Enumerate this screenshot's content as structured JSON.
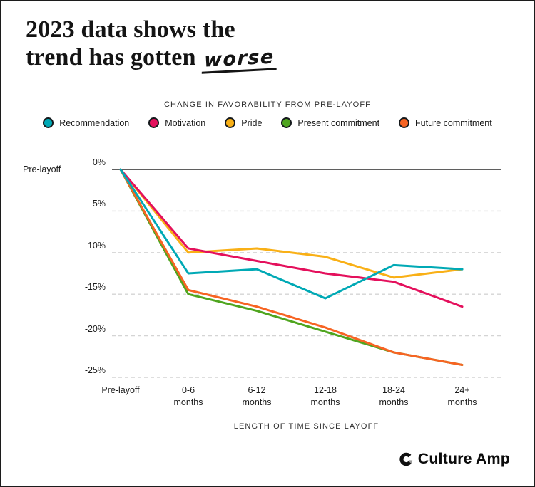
{
  "title": {
    "line1": "2023 data shows the",
    "line2": "trend has gotten",
    "emphasis": "worse"
  },
  "subtitle": "CHANGE IN FAVORABILITY FROM PRE-LAYOFF",
  "chart_data": {
    "type": "line",
    "title": "CHANGE IN FAVORABILITY FROM PRE-LAYOFF",
    "categories": [
      "Pre-layoff",
      "0-6 months",
      "6-12 months",
      "12-18 months",
      "18-24 months",
      "24+ months"
    ],
    "series": [
      {
        "name": "Recommendation",
        "color": "#00A9B5",
        "values": [
          0,
          -12.5,
          -12,
          -15.5,
          -11.5,
          -12
        ]
      },
      {
        "name": "Motivation",
        "color": "#E4105C",
        "values": [
          0,
          -9.5,
          -11,
          -12.5,
          -13.5,
          -16.5
        ]
      },
      {
        "name": "Pride",
        "color": "#F9B016",
        "values": [
          0,
          -10,
          -9.5,
          -10.5,
          -13,
          -12
        ]
      },
      {
        "name": "Present commitment",
        "color": "#4FA51F",
        "values": [
          0,
          -15,
          -17,
          -19.5,
          -22,
          -23.5
        ]
      },
      {
        "name": "Future commitment",
        "color": "#F76423",
        "values": [
          0,
          -14.5,
          -16.5,
          -19,
          -22,
          -23.5
        ]
      }
    ],
    "yticks": [
      "0%",
      "-5%",
      "-10%",
      "-15%",
      "-20%",
      "-25%"
    ],
    "ylim": [
      -25,
      0
    ],
    "ylabel": "",
    "xlabel": "LENGTH OF TIME SINCE LAYOFF",
    "zero_line_label": "Pre-layoff",
    "grid": "horizontal-dashed",
    "legend_position": "top",
    "colors": {
      "zero_line": "#2a2a2a",
      "gridline": "#d4d4d4",
      "text": "#1c1c1c"
    }
  },
  "footer": {
    "brand": "Culture Amp"
  }
}
